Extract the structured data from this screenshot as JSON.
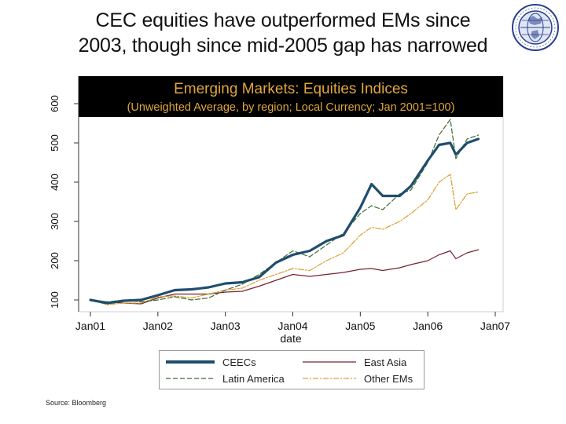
{
  "slide": {
    "title_line1": "CEC equities have outperformed EMs since",
    "title_line2": "2003, though since mid-2005 gap has narrowed",
    "source": "Source: Bloomberg"
  },
  "chart_data": {
    "type": "line",
    "title": "Emerging Markets: Equities Indices",
    "subtitle": "(Unweighted Average, by region; Local Currency; Jan 2001=100)",
    "xlabel": "date",
    "ylabel": "",
    "x_ticks": [
      "Jan01",
      "Jan02",
      "Jan03",
      "Jan04",
      "Jan05",
      "Jan06",
      "Jan07"
    ],
    "y_ticks": [
      100,
      200,
      300,
      400,
      500,
      600
    ],
    "ylim": [
      100,
      670
    ],
    "grid": false,
    "legend_position": "bottom",
    "colors": {
      "CEECs": "#1f4e6e",
      "East Asia": "#7a2030",
      "Latin America": "#3d6b2e",
      "Other EMs": "#d9a030",
      "title_band": "#000000",
      "title_text": "#e0a63a"
    },
    "x": [
      "2001-01",
      "2001-04",
      "2001-07",
      "2001-10",
      "2002-01",
      "2002-04",
      "2002-07",
      "2002-10",
      "2003-01",
      "2003-04",
      "2003-07",
      "2003-10",
      "2004-01",
      "2004-04",
      "2004-07",
      "2004-10",
      "2005-01",
      "2005-03",
      "2005-05",
      "2005-08",
      "2005-10",
      "2006-01",
      "2006-03",
      "2006-05",
      "2006-06",
      "2006-08",
      "2006-10"
    ],
    "series": [
      {
        "name": "CEECs",
        "values": [
          100,
          92,
          98,
          100,
          112,
          125,
          127,
          132,
          142,
          145,
          158,
          195,
          215,
          225,
          250,
          265,
          335,
          395,
          365,
          365,
          390,
          455,
          495,
          500,
          470,
          500,
          510
        ]
      },
      {
        "name": "East Asia",
        "values": [
          100,
          95,
          92,
          90,
          105,
          115,
          115,
          115,
          120,
          122,
          135,
          150,
          165,
          160,
          165,
          170,
          178,
          180,
          175,
          182,
          190,
          200,
          215,
          225,
          205,
          220,
          228
        ]
      },
      {
        "name": "Latin America",
        "values": [
          100,
          95,
          100,
          95,
          100,
          108,
          100,
          105,
          125,
          140,
          165,
          195,
          225,
          210,
          240,
          270,
          320,
          340,
          330,
          370,
          380,
          450,
          520,
          560,
          460,
          510,
          520
        ]
      },
      {
        "name": "Other EMs",
        "values": [
          100,
          88,
          92,
          92,
          108,
          110,
          105,
          115,
          125,
          130,
          150,
          165,
          180,
          175,
          200,
          220,
          265,
          285,
          280,
          300,
          320,
          355,
          400,
          420,
          330,
          370,
          375
        ]
      }
    ]
  }
}
